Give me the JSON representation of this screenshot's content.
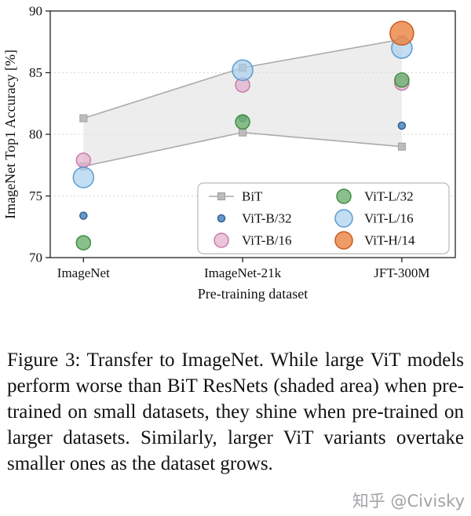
{
  "figure": {
    "caption": "Figure 3: Transfer to ImageNet. While large ViT models perform worse than BiT ResNets (shaded area) when pre-trained on small datasets, they shine when pre-trained on larger datasets. Similarly, larger ViT variants overtake smaller ones as the dataset grows."
  },
  "watermark": {
    "text": "知乎 @Civisky"
  },
  "chart_data": {
    "type": "scatter",
    "title": "",
    "xlabel": "Pre-training dataset",
    "ylabel": "ImageNet Top1 Accuracy [%]",
    "ylim": [
      70,
      90
    ],
    "yticks": [
      70,
      75,
      80,
      85,
      90
    ],
    "categories": [
      "ImageNet",
      "ImageNet-21k",
      "JFT-300M"
    ],
    "grid": "horizontal-dashed",
    "legend_position": "lower right",
    "bit_band": {
      "name": "BiT",
      "upper": [
        81.3,
        85.4,
        87.7
      ],
      "lower": [
        77.4,
        80.15,
        79.0
      ],
      "line_color": "#ababab",
      "marker_color": "#bcbcbc",
      "marker_edge": "#9e9e9e",
      "fill_color": "#dcdcdc"
    },
    "series": [
      {
        "name": "ViT-B/32",
        "values": [
          73.4,
          81.3,
          80.7
        ],
        "marker_radius": 4.5,
        "fill": "#5e93c5",
        "edge": "#2f5f96",
        "fill_opacity": 0.95
      },
      {
        "name": "ViT-B/16",
        "values": [
          77.9,
          84.0,
          84.15
        ],
        "marker_radius": 9,
        "fill": "#e2afcd",
        "edge": "#c87bab",
        "fill_opacity": 0.72
      },
      {
        "name": "ViT-L/32",
        "values": [
          71.2,
          81.0,
          84.4
        ],
        "marker_radius": 9,
        "fill": "#6fb271",
        "edge": "#3f8c44",
        "fill_opacity": 0.82
      },
      {
        "name": "ViT-L/16",
        "values": [
          76.5,
          85.2,
          87.0
        ],
        "marker_radius": 13,
        "fill": "#a9cfec",
        "edge": "#5b9bd1",
        "fill_opacity": 0.7
      },
      {
        "name": "ViT-H/14",
        "values": [
          null,
          null,
          88.2
        ],
        "marker_radius": 15,
        "fill": "#ec8a4b",
        "edge": "#c85a1e",
        "fill_opacity": 0.85
      }
    ],
    "legend_columns": [
      [
        "BiT",
        "ViT-B/32",
        "ViT-B/16"
      ],
      [
        "ViT-L/32",
        "ViT-L/16",
        "ViT-H/14"
      ]
    ]
  }
}
